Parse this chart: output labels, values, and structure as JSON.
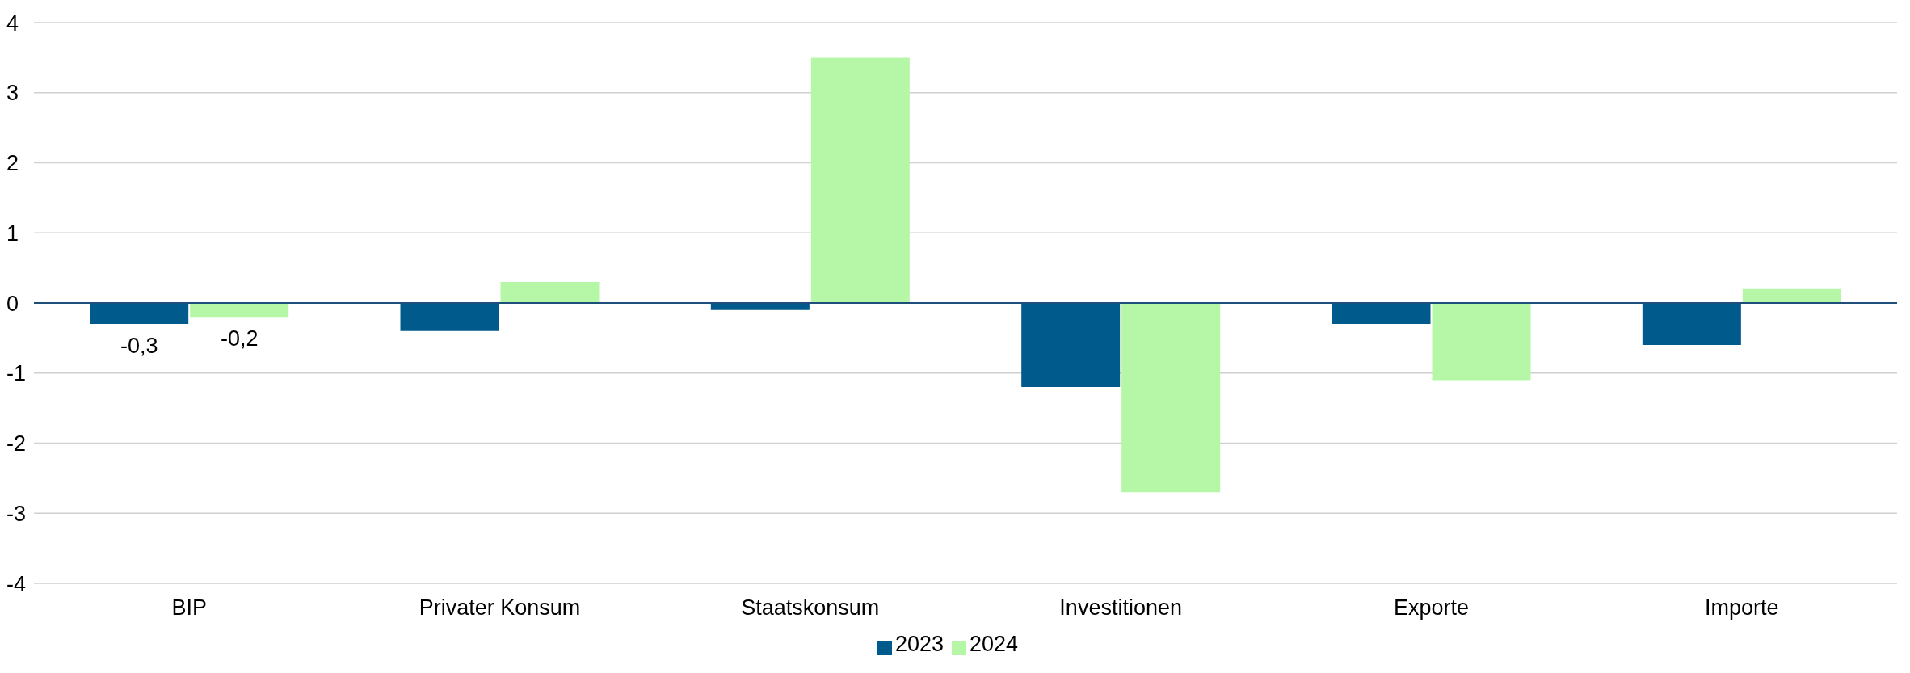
{
  "chart_data": {
    "type": "bar",
    "categories": [
      "BIP",
      "Privater Konsum",
      "Staatskonsum",
      "Investitionen",
      "Exporte",
      "Importe"
    ],
    "series": [
      {
        "name": "2023",
        "color": "#005a8c",
        "values": [
          -0.3,
          -0.4,
          -0.1,
          -1.2,
          -0.3,
          -0.6
        ],
        "value_labels": [
          "-0,3",
          null,
          null,
          null,
          null,
          null
        ]
      },
      {
        "name": "2024",
        "color": "#b5f7a7",
        "values": [
          -0.2,
          0.3,
          3.5,
          -2.7,
          -1.1,
          0.2
        ],
        "value_labels": [
          "-0,2",
          null,
          null,
          null,
          null,
          null
        ]
      }
    ],
    "ref_lines": [
      {
        "axis": "y",
        "value": 0,
        "color": "#1d4f7a"
      }
    ],
    "ylim": [
      -4,
      4
    ],
    "yticks": [
      -4,
      -3,
      -2,
      -1,
      0,
      1,
      2,
      3,
      4
    ],
    "grid": "y",
    "legend": "bottom"
  }
}
